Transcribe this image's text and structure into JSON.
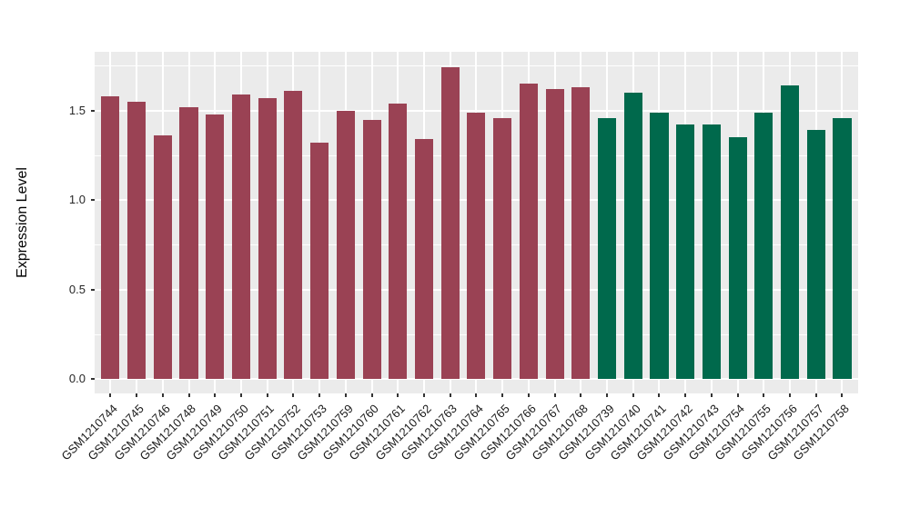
{
  "chart_data": {
    "type": "bar",
    "title": "",
    "xlabel": "",
    "ylabel": "Expression Level",
    "legend_position": "none",
    "grid": true,
    "panel_background": "#ebebeb",
    "grid_color": "#ffffff",
    "ylim": [
      -0.08,
      1.83
    ],
    "ytick_labels": [
      "0.0",
      "0.5",
      "1.0",
      "1.5"
    ],
    "ytick_values": [
      0,
      0.5,
      1.0,
      1.5
    ],
    "yminor_values": [
      0.25,
      0.75,
      1.25,
      1.75
    ],
    "categories": [
      "GSM1210744",
      "GSM1210745",
      "GSM1210746",
      "GSM1210748",
      "GSM1210749",
      "GSM1210750",
      "GSM1210751",
      "GSM1210752",
      "GSM1210753",
      "GSM1210759",
      "GSM1210760",
      "GSM1210761",
      "GSM1210762",
      "GSM1210763",
      "GSM1210764",
      "GSM1210765",
      "GSM1210766",
      "GSM1210767",
      "GSM1210768",
      "GSM1210739",
      "GSM1210740",
      "GSM1210741",
      "GSM1210742",
      "GSM1210743",
      "GSM1210754",
      "GSM1210755",
      "GSM1210756",
      "GSM1210757",
      "GSM1210758"
    ],
    "values": [
      1.58,
      1.55,
      1.36,
      1.52,
      1.48,
      1.59,
      1.57,
      1.61,
      1.32,
      1.5,
      1.45,
      1.54,
      1.34,
      1.74,
      1.49,
      1.46,
      1.65,
      1.62,
      1.63,
      1.46,
      1.6,
      1.49,
      1.42,
      1.42,
      1.35,
      1.49,
      1.64,
      1.39,
      1.46
    ],
    "groups": [
      "group1",
      "group1",
      "group1",
      "group1",
      "group1",
      "group1",
      "group1",
      "group1",
      "group1",
      "group1",
      "group1",
      "group1",
      "group1",
      "group1",
      "group1",
      "group1",
      "group1",
      "group1",
      "group1",
      "group2",
      "group2",
      "group2",
      "group2",
      "group2",
      "group2",
      "group2",
      "group2",
      "group2",
      "group2"
    ],
    "group_colors": {
      "group1": "#9a4254",
      "group2": "#00694c"
    }
  }
}
